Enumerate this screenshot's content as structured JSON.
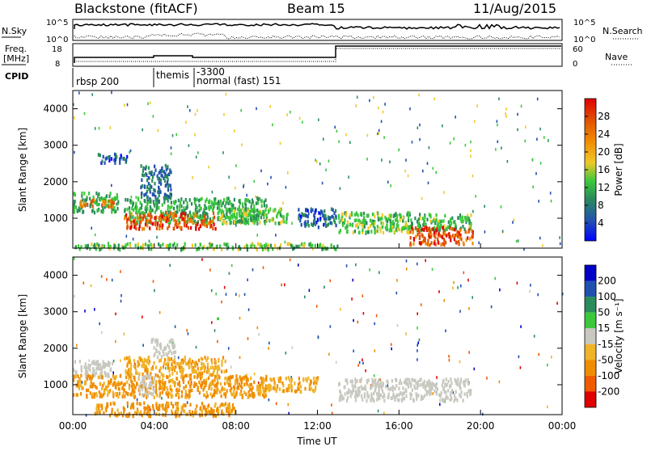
{
  "header": {
    "station": "Blackstone (fitACF)",
    "beam": "Beam 15",
    "date": "11/Aug/2015"
  },
  "status_panels": {
    "nsky_label": "N.Sky",
    "nsearch_label": "N.Search",
    "noise_ticks": [
      "10^5",
      "10^0"
    ],
    "freq_label_line1": "Freq.",
    "freq_label_line2": "[MHz]",
    "freq_ticks": [
      "18",
      "8"
    ],
    "nave_label": "Nave",
    "nave_ticks": [
      "60",
      "0"
    ],
    "cpid_label": "CPID",
    "cpid_entries": [
      "rbsp 200",
      "themis",
      "-3300",
      "normal (fast) 151"
    ]
  },
  "colors": {
    "power_scale": [
      "#0000ff",
      "#2050b0",
      "#2a8c5a",
      "#3cc83c",
      "#f0c828",
      "#f08c00",
      "#e05000",
      "#e00000"
    ],
    "velocity_scale": [
      "#e00000",
      "#f05a00",
      "#f08c00",
      "#f0b428",
      "#c8c8c0",
      "#3cc83c",
      "#2a8c5a",
      "#2050b0",
      "#0000c8"
    ],
    "ground_scatter": "#c8c8c0"
  },
  "chart_data": [
    {
      "type": "heatmap",
      "name": "power",
      "xlabel": "",
      "ylabel": "Slant Range [km]",
      "xlim": [
        "00:00",
        "00:00"
      ],
      "ylim": [
        180,
        4500
      ],
      "yticks": [
        1000,
        2000,
        3000,
        4000
      ],
      "colorbar": {
        "label": "Power [dB]",
        "range": [
          0,
          32
        ],
        "ticks": [
          4,
          8,
          12,
          16,
          20,
          24,
          28
        ]
      },
      "regions": [
        {
          "t_start": 0.0,
          "t_end": 2.2,
          "r_start": 1200,
          "r_end": 1750,
          "level": 12
        },
        {
          "t_start": 0.3,
          "t_end": 2.0,
          "r_start": 1350,
          "r_end": 1550,
          "level": 24
        },
        {
          "t_start": 1.2,
          "t_end": 2.8,
          "r_start": 2550,
          "r_end": 2800,
          "level": 6
        },
        {
          "t_start": 3.3,
          "t_end": 4.8,
          "r_start": 1500,
          "r_end": 2500,
          "level": 8
        },
        {
          "t_start": 2.5,
          "t_end": 9.5,
          "r_start": 900,
          "r_end": 1600,
          "level": 12
        },
        {
          "t_start": 2.5,
          "t_end": 7.0,
          "r_start": 750,
          "r_end": 1200,
          "level": 26
        },
        {
          "t_start": 7.0,
          "t_end": 10.5,
          "r_start": 900,
          "r_end": 1300,
          "level": 14
        },
        {
          "t_start": 11.0,
          "t_end": 13.0,
          "r_start": 800,
          "r_end": 1300,
          "level": 7
        },
        {
          "t_start": 13.0,
          "t_end": 16.5,
          "r_start": 650,
          "r_end": 1200,
          "level": 14
        },
        {
          "t_start": 15.5,
          "t_end": 19.5,
          "r_start": 700,
          "r_end": 1150,
          "level": 13
        },
        {
          "t_start": 16.5,
          "t_end": 19.6,
          "r_start": 300,
          "r_end": 800,
          "level": 26
        },
        {
          "t_start": 0.0,
          "t_end": 13.0,
          "r_start": 180,
          "r_end": 350,
          "level": 14
        }
      ]
    },
    {
      "type": "heatmap",
      "name": "velocity",
      "xlabel": "Time UT",
      "ylabel": "Slant Range [km]",
      "xlim": [
        "00:00",
        "00:00"
      ],
      "ylim": [
        180,
        4500
      ],
      "xticks": [
        "00:00",
        "04:00",
        "08:00",
        "12:00",
        "16:00",
        "20:00",
        "00:00"
      ],
      "yticks": [
        1000,
        2000,
        3000,
        4000
      ],
      "colorbar": {
        "label": "Velocity [m s⁻¹]",
        "range": [
          -250,
          250
        ],
        "ticks": [
          200,
          100,
          50,
          15,
          -15,
          -50,
          -100,
          -200
        ]
      },
      "regions": [
        {
          "t_start": 0.0,
          "t_end": 2.0,
          "r_start": 1250,
          "r_end": 1700,
          "velocity": 0
        },
        {
          "t_start": 0.0,
          "t_end": 9.5,
          "r_start": 700,
          "r_end": 1300,
          "velocity": -60
        },
        {
          "t_start": 2.5,
          "t_end": 7.5,
          "r_start": 1300,
          "r_end": 1800,
          "velocity": -40
        },
        {
          "t_start": 3.8,
          "t_end": 5.0,
          "r_start": 1800,
          "r_end": 2300,
          "velocity": 0
        },
        {
          "t_start": 3.2,
          "t_end": 4.0,
          "r_start": 700,
          "r_end": 1300,
          "velocity": 0
        },
        {
          "t_start": 9.0,
          "t_end": 12.0,
          "r_start": 850,
          "r_end": 1250,
          "velocity": -40
        },
        {
          "t_start": 13.0,
          "t_end": 19.5,
          "r_start": 600,
          "r_end": 1200,
          "velocity": 0
        },
        {
          "t_start": 1.0,
          "t_end": 8.0,
          "r_start": 180,
          "r_end": 550,
          "velocity": -60
        }
      ]
    }
  ]
}
